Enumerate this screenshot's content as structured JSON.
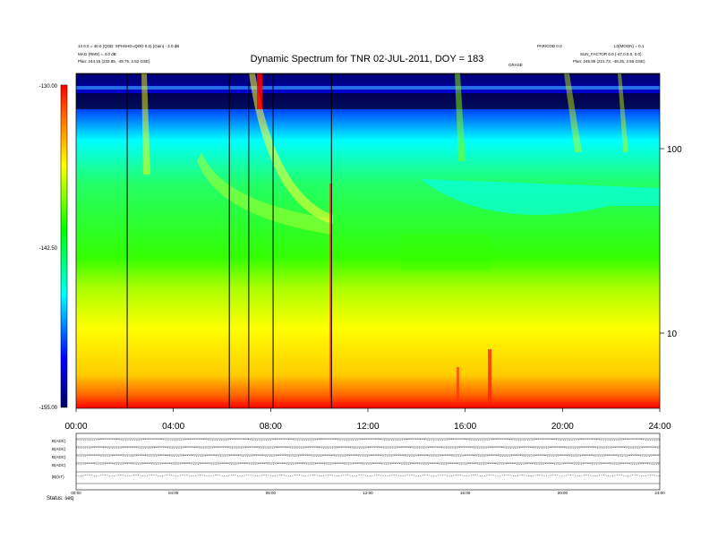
{
  "chart_data": {
    "type": "heatmap",
    "title": "Dynamic Spectrum for TNR 02-JUL-2011, DOY = 183",
    "x_ticks": [
      "00:00",
      "04:00",
      "08:00",
      "12:00",
      "16:00",
      "20:00",
      "24:00"
    ],
    "x_range_hours": [
      0,
      24
    ],
    "y_axis": {
      "scale": "log",
      "ticks": [
        "10",
        "100"
      ]
    },
    "colorbar": {
      "ticks": [
        "-130.00",
        "-142.50",
        "-155.00"
      ],
      "range": [
        -155.0,
        -130.0
      ],
      "colors": [
        "#000066",
        "#0000ff",
        "#00ffff",
        "#00ff00",
        "#ffff00",
        "#ff8000",
        "#ff0000"
      ]
    },
    "vertical_lines_hours": [
      2.1,
      6.3,
      7.1,
      8.1,
      10.5
    ],
    "header": {
      "left_line1": "14 0.0 = 40.0 (QOD: SPHSHD=QOD 0.0) (Gain) - 2.0 dB",
      "left_line2": "MAG (RMS) = 4.0 dB",
      "left_line3": "Plan:   244.15 (232.85, -49.75, 2.52 GSE)",
      "right_line1": "PAR/COD 0.0",
      "right_line2": "L0(MOON) = 0.1",
      "right_line3": "SUN_FACTOR 0.0 (-47.0 0.0, 0.0)",
      "right_line4": "Plan:   245.85 (221.73, -48.25, 2.55 GSE)",
      "right_mid": "GRASE"
    },
    "bottom_panels": {
      "labels": [
        "B(ADC)",
        "B(ADC)",
        "B(ADC)",
        "B(ADC)",
        "|B|(nT)"
      ],
      "x_ticks": [
        "00:00",
        "04:00",
        "08:00",
        "12:00",
        "16:00",
        "20:00",
        "24:00"
      ]
    },
    "footer": "Status: seq"
  }
}
